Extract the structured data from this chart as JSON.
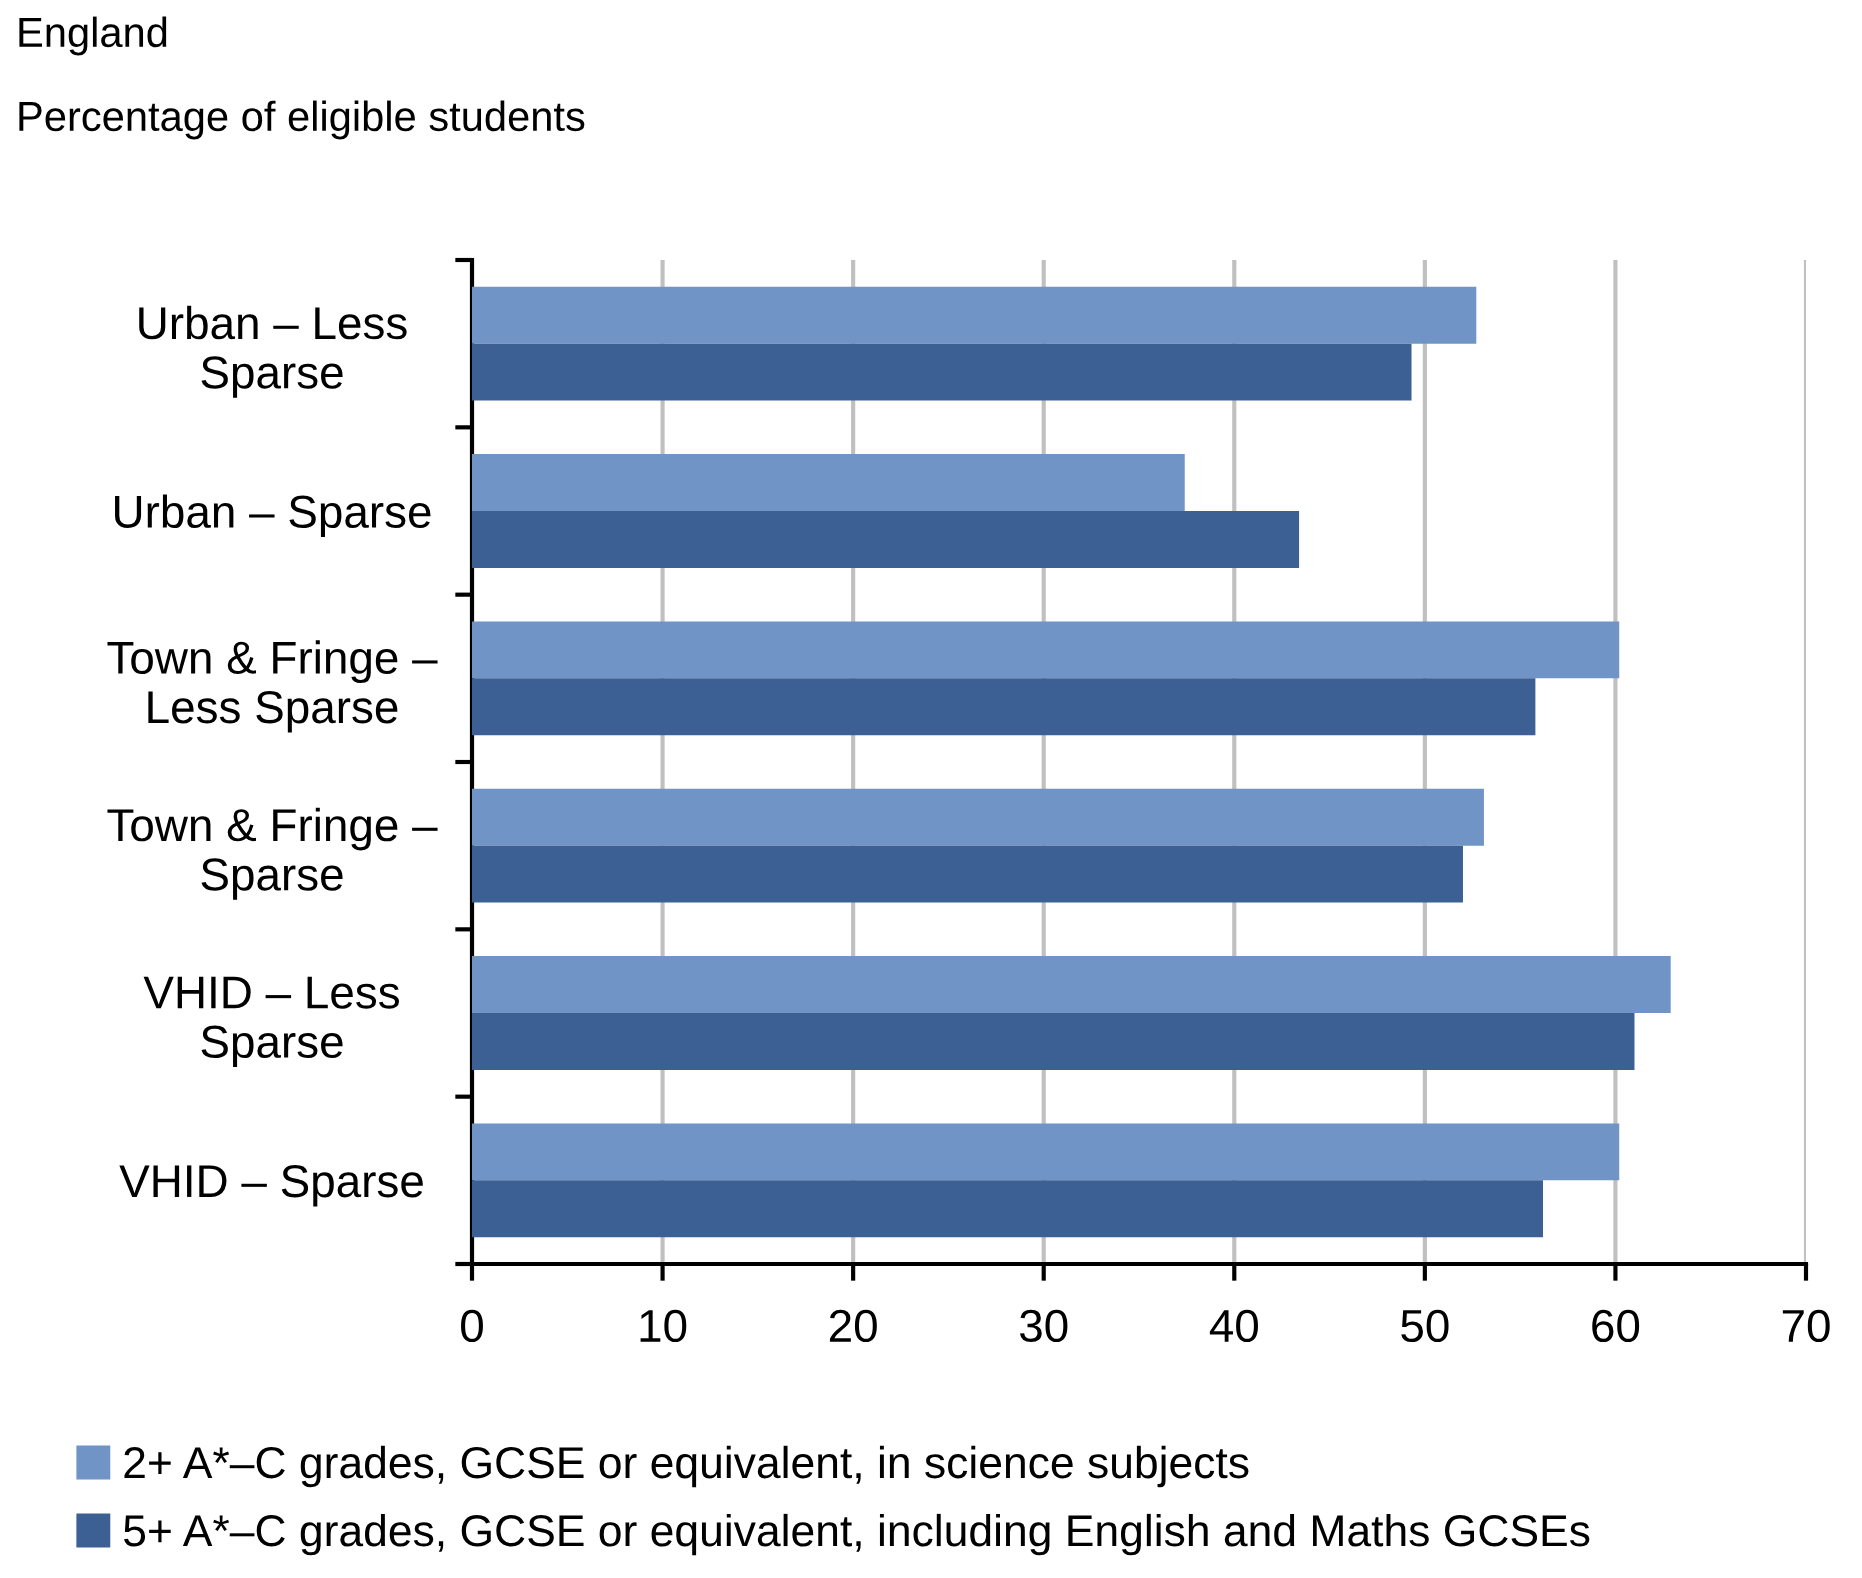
{
  "chart_data": {
    "type": "bar",
    "orientation": "horizontal",
    "title": "England",
    "subtitle": "Percentage of eligible students",
    "categories": [
      "Urban – Less\nSparse",
      "Urban – Sparse",
      "Town & Fringe –\nLess Sparse",
      "Town & Fringe –\nSparse",
      "VHID – Less\nSparse",
      "VHID – Sparse"
    ],
    "series": [
      {
        "name": "2+ A*–C grades, GCSE or equivalent, in science subjects",
        "color": "#7094c6",
        "values": [
          52.7,
          37.4,
          60.2,
          53.1,
          62.9,
          60.2
        ]
      },
      {
        "name": "5+ A*–C grades, GCSE or equivalent, including English and Maths GCSEs",
        "color": "#3c6094",
        "values": [
          49.3,
          43.4,
          55.8,
          52.0,
          61.0,
          56.2
        ]
      }
    ],
    "xlim": [
      0,
      70
    ],
    "xticks": [
      0,
      10,
      20,
      30,
      40,
      50,
      60,
      70
    ],
    "grid": "x",
    "legend": "bottom"
  }
}
